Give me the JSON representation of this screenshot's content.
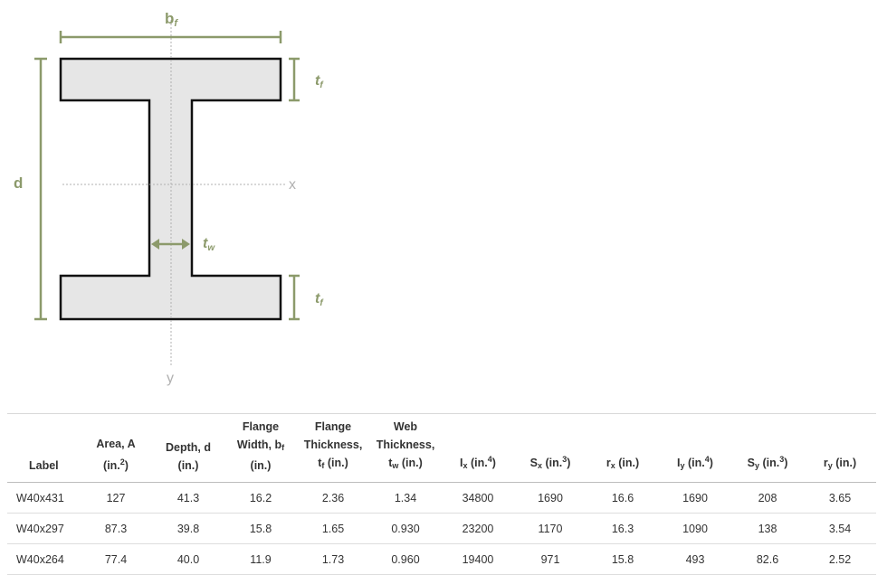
{
  "diagram": {
    "labels": {
      "bf": {
        "main": "b",
        "sub": "f"
      },
      "tf_top": {
        "main": "t",
        "sub": "f"
      },
      "tf_bottom": {
        "main": "t",
        "sub": "f"
      },
      "tw": {
        "main": "t",
        "sub": "w"
      },
      "d": "d",
      "x_axis": "x",
      "y_axis": "y"
    },
    "colors": {
      "dimension": "#8c9a6b",
      "section_fill": "#e6e6e6",
      "section_stroke": "#111111",
      "axis": "#b0b0b0"
    }
  },
  "table": {
    "headers": [
      {
        "line1": "",
        "line2": "",
        "line3": "Label"
      },
      {
        "line1": "",
        "line2": "Area, A",
        "line3": "(in.",
        "sup": "2",
        "tail": ")"
      },
      {
        "line1": "",
        "line2": "Depth, d",
        "line3": "(in.)"
      },
      {
        "line1": "Flange",
        "line2": "Width, b",
        "line2_sub": "f",
        "line3": "(in.)"
      },
      {
        "line1": "Flange",
        "line2": "Thickness,",
        "line3": "t",
        "sub": "f",
        "tail": " (in.)"
      },
      {
        "line1": "Web",
        "line2": "Thickness,",
        "line3": "t",
        "sub": "w",
        "tail": " (in.)"
      },
      {
        "line1": "",
        "line2": "",
        "line3": "I",
        "sub": "x",
        "tail": " (in.",
        "sup": "4",
        "tail2": ")"
      },
      {
        "line1": "",
        "line2": "",
        "line3": "S",
        "sub": "x",
        "tail": " (in.",
        "sup": "3",
        "tail2": ")"
      },
      {
        "line1": "",
        "line2": "",
        "line3": "r",
        "sub": "x",
        "tail": " (in.)"
      },
      {
        "line1": "",
        "line2": "",
        "line3": "I",
        "sub": "y",
        "tail": " (in.",
        "sup": "4",
        "tail2": ")"
      },
      {
        "line1": "",
        "line2": "",
        "line3": "S",
        "sub": "y",
        "tail": " (in.",
        "sup": "3",
        "tail2": ")"
      },
      {
        "line1": "",
        "line2": "",
        "line3": "r",
        "sub": "y",
        "tail": " (in.)"
      }
    ],
    "rows": [
      [
        "W40x431",
        "127",
        "41.3",
        "16.2",
        "2.36",
        "1.34",
        "34800",
        "1690",
        "16.6",
        "1690",
        "208",
        "3.65"
      ],
      [
        "W40x297",
        "87.3",
        "39.8",
        "15.8",
        "1.65",
        "0.930",
        "23200",
        "1170",
        "16.3",
        "1090",
        "138",
        "3.54"
      ],
      [
        "W40x264",
        "77.4",
        "40.0",
        "11.9",
        "1.73",
        "0.960",
        "19400",
        "971",
        "15.8",
        "493",
        "82.6",
        "2.52"
      ]
    ]
  }
}
